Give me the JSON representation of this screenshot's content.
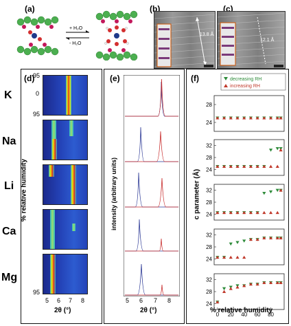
{
  "panels": {
    "a": "(a)",
    "b": "(b)",
    "c": "(c)",
    "d": "(d)",
    "e": "(e)",
    "f": "(f)"
  },
  "reaction": {
    "forward": "+ H₂O",
    "reverse": "- H₂O"
  },
  "tem_b": {
    "measure": "13.8 Å",
    "scale": "5 nm"
  },
  "tem_c": {
    "measure": "12.1 Å",
    "scale": "5 nm"
  },
  "cations": [
    "K",
    "Na",
    "Li",
    "Ca",
    "Mg"
  ],
  "panel_d": {
    "ylabel": "% relative humidity",
    "yticks": [
      "95",
      "0",
      "95"
    ],
    "xlabel": "2θ (°)",
    "xticks": [
      "5",
      "6",
      "7",
      "8"
    ]
  },
  "panel_e": {
    "ylabel": "intensity (arbitrary units)",
    "xlabel": "2θ (°)",
    "xticks": [
      "5",
      "6",
      "7",
      "8"
    ]
  },
  "panel_f": {
    "ylabel": "c parameter (Å)",
    "xlabel": "% relative humidity",
    "xticks": [
      "0",
      "20",
      "40",
      "60",
      "80"
    ],
    "legend": {
      "decreasing": "decreasing RH",
      "increasing": "increasing RH"
    },
    "colors": {
      "decreasing": "#2e8b3a",
      "increasing": "#c0392b"
    }
  },
  "chart_data": {
    "type": "scatter",
    "x": [
      0,
      10,
      20,
      30,
      40,
      50,
      60,
      70,
      80,
      90,
      95
    ],
    "xlim": [
      -5,
      100
    ],
    "subplots": [
      {
        "name": "K",
        "yticks": [
          24,
          28
        ],
        "ylim": [
          22,
          30
        ],
        "series": [
          {
            "name": "decreasing RH",
            "values": [
              25,
              25,
              25,
              25,
              25,
              25,
              25,
              25,
              25,
              25,
              25
            ]
          },
          {
            "name": "increasing RH",
            "values": [
              25,
              25,
              25,
              25,
              25,
              25,
              25,
              25,
              25,
              25,
              25
            ]
          }
        ]
      },
      {
        "name": "Na",
        "yticks": [
          24,
          28,
          32
        ],
        "ylim": [
          22,
          34
        ],
        "series": [
          {
            "name": "decreasing RH",
            "values": [
              25,
              25,
              25,
              25,
              25,
              25,
              25,
              25,
              30.5,
              31,
              31
            ]
          },
          {
            "name": "increasing RH",
            "values": [
              25,
              25,
              25,
              25,
              25,
              25,
              25,
              25,
              25,
              25,
              30.5
            ]
          }
        ]
      },
      {
        "name": "Li",
        "yticks": [
          24,
          28,
          32
        ],
        "ylim": [
          22,
          34
        ],
        "series": [
          {
            "name": "decreasing RH",
            "values": [
              24.5,
              24.5,
              24.5,
              24.5,
              24.5,
              24.5,
              24.5,
              31,
              31.5,
              32,
              32
            ]
          },
          {
            "name": "increasing RH",
            "values": [
              24.5,
              24.5,
              24.5,
              24.5,
              24.5,
              24.5,
              24.5,
              24.5,
              24.5,
              24.5,
              32
            ]
          }
        ]
      },
      {
        "name": "Ca",
        "yticks": [
          24,
          28,
          32
        ],
        "ylim": [
          22,
          34
        ],
        "series": [
          {
            "name": "decreasing RH",
            "values": [
              24.5,
              24.5,
              29,
              29.5,
              30,
              30.5,
              30.5,
              31,
              31,
              31,
              31
            ]
          },
          {
            "name": "increasing RH",
            "values": [
              24.5,
              24.5,
              24.5,
              24.5,
              24.5,
              30.5,
              30.5,
              31,
              31,
              31,
              31
            ]
          }
        ]
      },
      {
        "name": "Mg",
        "yticks": [
          24,
          28,
          32
        ],
        "ylim": [
          22,
          34
        ],
        "series": [
          {
            "name": "decreasing RH",
            "values": [
              24.5,
              29,
              29.5,
              30,
              30,
              30.5,
              30.5,
              31,
              31,
              31,
              31
            ]
          },
          {
            "name": "increasing RH",
            "values": [
              24.5,
              28,
              29,
              29.5,
              30,
              30.5,
              30.5,
              31,
              31,
              31,
              31
            ]
          }
        ]
      }
    ]
  }
}
